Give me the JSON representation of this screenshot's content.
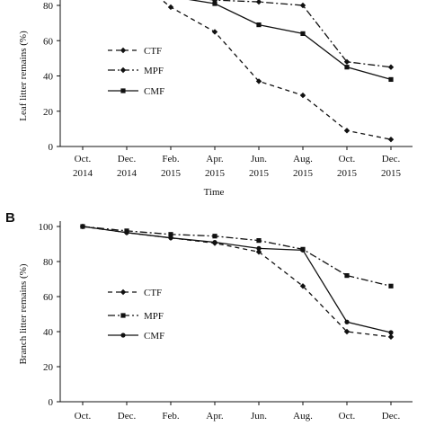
{
  "chart_data": [
    {
      "panel": "A",
      "panel_label": "",
      "type": "line",
      "title": "",
      "categories": [
        [
          "Oct.",
          "2014"
        ],
        [
          "Dec.",
          "2014"
        ],
        [
          "Feb.",
          "2015"
        ],
        [
          "Apr.",
          "2015"
        ],
        [
          "Jun.",
          "2015"
        ],
        [
          "Aug.",
          "2015"
        ],
        [
          "Oct.",
          "2015"
        ],
        [
          "Dec.",
          "2015"
        ]
      ],
      "xlabel": "Time",
      "ylabel": "Leaf litter remains (%)",
      "ylim": [
        0,
        80
      ],
      "yticks": [
        0,
        20,
        40,
        60,
        80
      ],
      "grid": false,
      "legend_position": "left",
      "series": [
        {
          "name": "CTF",
          "style": "dashed",
          "marker": "diamond",
          "values": [
            null,
            null,
            79,
            65,
            37,
            29,
            9,
            4
          ]
        },
        {
          "name": "MPF",
          "style": "dash-dot",
          "marker": "diamond",
          "values": [
            null,
            null,
            86,
            83,
            82,
            80,
            48,
            45
          ]
        },
        {
          "name": "CMF",
          "style": "solid",
          "marker": "square",
          "values": [
            null,
            null,
            85,
            81,
            69,
            64,
            45,
            38
          ]
        }
      ]
    },
    {
      "panel": "B",
      "panel_label": "B",
      "type": "line",
      "title": "",
      "categories": [
        [
          "Oct.",
          ""
        ],
        [
          "Dec.",
          ""
        ],
        [
          "Feb.",
          ""
        ],
        [
          "Apr.",
          ""
        ],
        [
          "Jun.",
          ""
        ],
        [
          "Aug.",
          ""
        ],
        [
          "Oct.",
          ""
        ],
        [
          "Dec.",
          ""
        ]
      ],
      "xlabel": "",
      "ylabel": "Branch litter remains (%)",
      "ylim": [
        0,
        100
      ],
      "yticks": [
        0,
        20,
        40,
        60,
        80,
        100
      ],
      "grid": false,
      "legend_position": "left",
      "series": [
        {
          "name": "CTF",
          "style": "dashed",
          "marker": "diamond",
          "values": [
            100,
            96.5,
            93.5,
            90.5,
            85.5,
            66,
            40,
            37
          ]
        },
        {
          "name": "MPF",
          "style": "dash-dot",
          "marker": "square",
          "values": [
            100,
            97.5,
            95.5,
            94.5,
            92,
            87,
            72,
            66
          ]
        },
        {
          "name": "CMF",
          "style": "solid",
          "marker": "circle",
          "values": [
            100,
            96.5,
            93.5,
            91,
            87.5,
            86.5,
            45.5,
            39.5
          ]
        }
      ]
    }
  ]
}
